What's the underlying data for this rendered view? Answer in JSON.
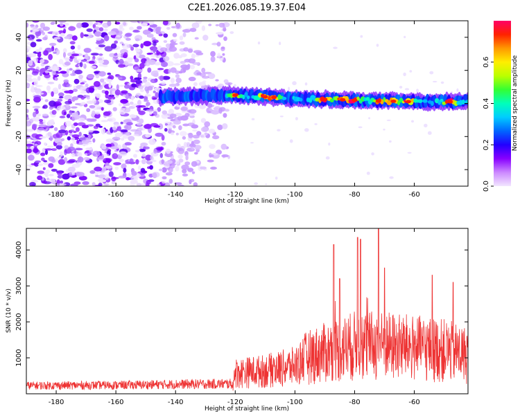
{
  "title": "C2E1.2026.085.19.37.E04",
  "chart_data": [
    {
      "type": "heatmap",
      "name": "spectrogram",
      "xlabel": "Height of straight line (km)",
      "ylabel": "Frequency (Hz)",
      "xlim": [
        -190,
        -42
      ],
      "ylim": [
        -50,
        50
      ],
      "xticks": [
        -180,
        -160,
        -140,
        -120,
        -100,
        -80,
        -60
      ],
      "yticks": [
        -40,
        -20,
        0,
        20,
        40
      ],
      "colorbar": {
        "label": "Normalized spectral amplitude",
        "range": [
          0.0,
          0.8
        ],
        "ticks": [
          0.0,
          0.2,
          0.4,
          0.6
        ],
        "colors": [
          "#f2e6ff",
          "#cc88ff",
          "#8800ff",
          "#2200ff",
          "#0066ff",
          "#00ccff",
          "#00ffbb",
          "#33ff33",
          "#bbff00",
          "#ffee00",
          "#ff9900",
          "#ff2200",
          "#ff0066"
        ]
      },
      "features": {
        "noise_region_x": [
          -190,
          -122
        ],
        "band_start_x": -145,
        "band_center_freq": [
          [
            -145,
            4
          ],
          [
            -120,
            5
          ],
          [
            -100,
            3
          ],
          [
            -80,
            2
          ],
          [
            -60,
            1
          ],
          [
            -42,
            1
          ]
        ],
        "band_halfwidth_hz": 3,
        "peak_x": [
          -120,
          -110,
          -107,
          -90,
          -84,
          -80,
          -72,
          -67,
          -62,
          -48
        ]
      }
    },
    {
      "type": "line",
      "name": "snr",
      "xlabel": "Height of straight line (km)",
      "ylabel": "SNR (10 * v/v)",
      "xlim": [
        -190,
        -42
      ],
      "ylim": [
        0,
        4600
      ],
      "xticks": [
        -180,
        -160,
        -140,
        -120,
        -100,
        -80,
        -60
      ],
      "yticks": [
        1000,
        2000,
        3000,
        4000
      ],
      "color": "#ee3333",
      "envelope": [
        [
          -190,
          300
        ],
        [
          -160,
          320
        ],
        [
          -140,
          360
        ],
        [
          -121,
          380
        ],
        [
          -120,
          900
        ],
        [
          -110,
          1000
        ],
        [
          -100,
          1200
        ],
        [
          -96,
          1600
        ],
        [
          -90,
          1800
        ],
        [
          -80,
          2100
        ],
        [
          -70,
          2100
        ],
        [
          -60,
          2000
        ],
        [
          -50,
          1900
        ],
        [
          -42,
          1700
        ]
      ],
      "peaks": [
        [
          -87,
          4150
        ],
        [
          -85,
          3200
        ],
        [
          -79,
          4350
        ],
        [
          -78,
          4300
        ],
        [
          -72,
          4600
        ],
        [
          -70,
          3500
        ],
        [
          -54,
          3300
        ],
        [
          -47,
          3100
        ]
      ]
    }
  ]
}
